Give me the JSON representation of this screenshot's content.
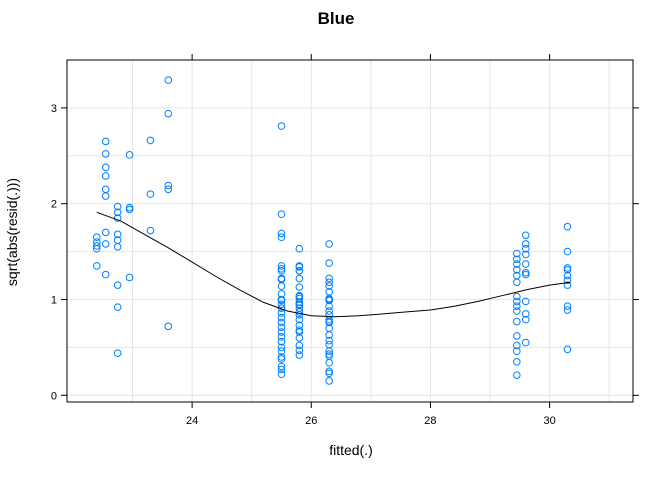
{
  "chart_data": {
    "type": "scatter",
    "title": "Blue",
    "xlabel": "fitted(.)",
    "ylabel": "sqrt(abs(resid(.)))",
    "xlim": [
      21.9,
      31.4
    ],
    "ylim": [
      -0.07,
      3.5
    ],
    "xticks": [
      24,
      26,
      28,
      30
    ],
    "yticks": [
      0,
      1,
      2,
      3
    ],
    "grid": true,
    "colors": {
      "points": "#0080ff",
      "smooth": "#000000",
      "grid": "#e6e6e6",
      "frame": "#000000"
    },
    "series": [
      {
        "type": "points",
        "x": [
          22.4,
          22.4,
          22.4,
          22.4,
          22.4,
          22.55,
          22.55,
          22.55,
          22.55,
          22.55,
          22.55,
          22.55,
          22.55,
          22.55,
          22.75,
          22.75,
          22.75,
          22.75,
          22.75,
          22.75,
          22.75,
          22.75,
          22.75,
          22.95,
          22.95,
          22.95,
          22.95,
          23.3,
          23.3,
          23.3,
          23.6,
          23.6,
          23.6,
          23.6,
          23.6,
          25.5,
          25.5,
          25.5,
          25.5,
          25.5,
          25.5,
          25.5,
          25.5,
          25.5,
          25.5,
          25.5,
          25.5,
          25.5,
          25.5,
          25.5,
          25.5,
          25.5,
          25.5,
          25.5,
          25.5,
          25.5,
          25.5,
          25.5,
          25.5,
          25.5,
          25.5,
          25.5,
          25.5,
          25.5,
          25.5,
          25.8,
          25.8,
          25.8,
          25.8,
          25.8,
          25.8,
          25.8,
          25.8,
          25.8,
          25.8,
          25.8,
          25.8,
          25.8,
          25.8,
          25.8,
          25.8,
          25.8,
          25.8,
          25.8,
          25.8,
          25.8,
          25.8,
          25.8,
          25.8,
          26.3,
          26.3,
          26.3,
          26.3,
          26.3,
          26.3,
          26.3,
          26.3,
          26.3,
          26.3,
          26.3,
          26.3,
          26.3,
          26.3,
          26.3,
          26.3,
          26.3,
          26.3,
          26.3,
          26.3,
          26.3,
          26.3,
          26.3,
          26.3,
          26.3,
          26.3,
          29.45,
          29.45,
          29.45,
          29.45,
          29.45,
          29.45,
          29.45,
          29.45,
          29.45,
          29.45,
          29.45,
          29.45,
          29.45,
          29.45,
          29.45,
          29.45,
          29.6,
          29.6,
          29.6,
          29.6,
          29.6,
          29.6,
          29.6,
          29.6,
          29.6,
          29.6,
          29.6,
          30.3,
          30.3,
          30.3,
          30.3,
          30.3,
          30.3,
          30.3,
          30.3,
          30.3,
          30.3
        ],
        "y": [
          1.65,
          1.6,
          1.56,
          1.53,
          1.35,
          2.65,
          2.52,
          2.38,
          2.29,
          2.15,
          2.08,
          1.7,
          1.58,
          1.26,
          1.97,
          1.91,
          1.85,
          1.68,
          1.62,
          1.55,
          1.15,
          0.92,
          0.44,
          2.51,
          1.96,
          1.94,
          1.23,
          2.66,
          2.1,
          1.72,
          3.29,
          2.94,
          2.19,
          2.15,
          0.72,
          2.81,
          1.89,
          1.69,
          1.65,
          1.35,
          1.3,
          1.21,
          1.14,
          1.06,
          0.99,
          0.95,
          0.91,
          0.86,
          0.81,
          0.76,
          0.71,
          0.66,
          0.61,
          0.56,
          0.5,
          0.46,
          0.4,
          0.38,
          0.3,
          0.27,
          0.22,
          1.32,
          1.22,
          1.0,
          0.91,
          1.53,
          1.34,
          1.3,
          1.22,
          1.13,
          1.04,
          1.01,
          0.97,
          0.94,
          0.91,
          0.87,
          0.84,
          0.79,
          0.73,
          0.68,
          0.66,
          0.6,
          0.52,
          0.47,
          0.42,
          1.35,
          1.3,
          1.03,
          0.95,
          1.58,
          1.38,
          1.22,
          1.18,
          1.14,
          1.08,
          1.01,
          0.99,
          0.93,
          0.88,
          0.84,
          0.79,
          0.76,
          0.7,
          0.63,
          0.57,
          0.53,
          0.46,
          0.41,
          0.34,
          0.25,
          0.15,
          1.0,
          0.77,
          0.43,
          0.23,
          1.48,
          1.42,
          1.37,
          1.31,
          1.25,
          1.18,
          1.03,
          0.98,
          0.93,
          0.88,
          0.77,
          0.62,
          0.52,
          0.46,
          0.35,
          0.21,
          1.67,
          1.58,
          1.53,
          1.47,
          1.37,
          1.28,
          1.26,
          0.98,
          0.85,
          0.79,
          0.55,
          1.76,
          1.5,
          1.33,
          1.31,
          1.25,
          1.2,
          1.15,
          0.93,
          0.89,
          0.48
        ]
      },
      {
        "type": "smooth",
        "x": [
          22.4,
          22.8,
          23.2,
          23.6,
          24.0,
          24.4,
          24.8,
          25.2,
          25.6,
          26.0,
          26.4,
          26.8,
          27.2,
          27.6,
          28.0,
          28.4,
          28.8,
          29.2,
          29.6,
          30.0,
          30.35
        ],
        "y": [
          1.91,
          1.82,
          1.68,
          1.54,
          1.39,
          1.24,
          1.1,
          0.97,
          0.88,
          0.83,
          0.82,
          0.83,
          0.85,
          0.87,
          0.89,
          0.93,
          0.98,
          1.04,
          1.1,
          1.15,
          1.18
        ]
      }
    ]
  }
}
